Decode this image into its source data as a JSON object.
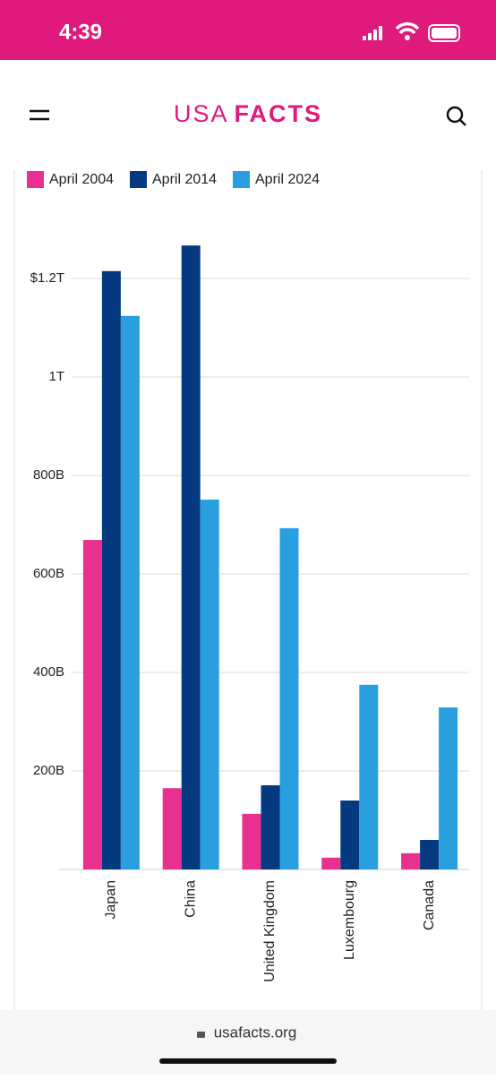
{
  "status_bar": {
    "time": "4:39"
  },
  "header": {
    "logo_light": "USA",
    "logo_bold": "FACTS"
  },
  "footer": {
    "url": "usafacts.org"
  },
  "chart_data": {
    "type": "bar",
    "categories": [
      "Japan",
      "China",
      "United Kingdom",
      "Luxembourg",
      "Canada"
    ],
    "series": [
      {
        "name": "April 2004",
        "color": "#e8308f",
        "values": [
          669,
          165,
          113,
          24,
          33
        ]
      },
      {
        "name": "April 2014",
        "color": "#063a80",
        "values": [
          1215,
          1267,
          171,
          140,
          60
        ]
      },
      {
        "name": "April 2024",
        "color": "#2a9fe0",
        "values": [
          1124,
          751,
          693,
          375,
          329
        ]
      }
    ],
    "ylim": [
      0,
      1300
    ],
    "yticks": [
      {
        "value": 200,
        "label": "200B"
      },
      {
        "value": 400,
        "label": "400B"
      },
      {
        "value": 600,
        "label": "600B"
      },
      {
        "value": 800,
        "label": "800B"
      },
      {
        "value": 1000,
        "label": "1T"
      },
      {
        "value": 1200,
        "label": "$1.2T"
      }
    ],
    "grid": true
  }
}
